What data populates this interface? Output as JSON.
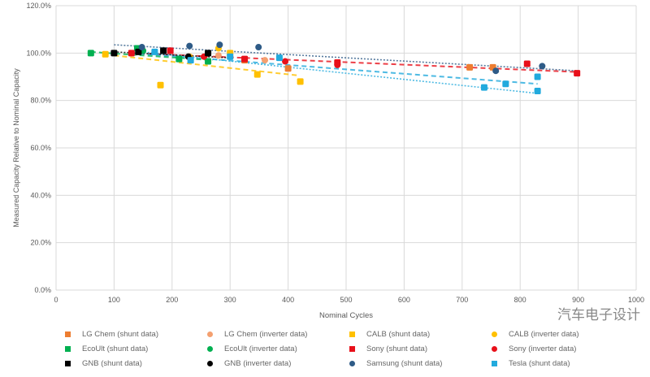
{
  "chart_data": {
    "type": "scatter",
    "title": "",
    "xlabel": "Nominal Cycles",
    "ylabel": "Measured Capacity Relative to Nominal Capacity",
    "xlim": [
      0,
      1000
    ],
    "ylim": [
      0,
      120
    ],
    "xticks": [
      "0",
      "100",
      "200",
      "300",
      "400",
      "500",
      "600",
      "700",
      "800",
      "900",
      "1000"
    ],
    "yticks": [
      "0.0%",
      "20.0%",
      "40.0%",
      "60.0%",
      "80.0%",
      "100.0%",
      "120.0%"
    ],
    "grid": true,
    "legend_position": "bottom",
    "series": [
      {
        "name": "LG Chem (shunt data)",
        "color": "#ED7D31",
        "marker": "square",
        "points": [
          [
            325,
            97
          ],
          [
            400,
            93.5
          ],
          [
            713,
            94
          ],
          [
            753,
            94
          ]
        ]
      },
      {
        "name": "LG Chem (inverter data)",
        "color": "#F4A070",
        "marker": "circle",
        "points": [
          [
            280,
            99
          ],
          [
            360,
            97
          ]
        ]
      },
      {
        "name": "CALB (shunt data)",
        "color": "#FFC000",
        "marker": "square",
        "points": [
          [
            85,
            99.5
          ],
          [
            180,
            86.5
          ],
          [
            300,
            100
          ],
          [
            347,
            91
          ],
          [
            421,
            88
          ]
        ]
      },
      {
        "name": "CALB (inverter data)",
        "color": "#FFC000",
        "marker": "circle",
        "points": [
          [
            230,
            98.5
          ],
          [
            280,
            102
          ]
        ]
      },
      {
        "name": "EcoUlt (shunt data)",
        "color": "#00B050",
        "marker": "square",
        "points": [
          [
            60,
            100
          ],
          [
            140,
            102
          ],
          [
            212,
            97.5
          ],
          [
            262,
            96.5
          ]
        ]
      },
      {
        "name": "EcoUlt (inverter data)",
        "color": "#00B050",
        "marker": "circle",
        "points": [
          [
            150,
            101
          ]
        ]
      },
      {
        "name": "Sony (shunt data)",
        "color": "#E8101A",
        "marker": "square",
        "points": [
          [
            130,
            100
          ],
          [
            197,
            101
          ],
          [
            325,
            97.5
          ],
          [
            485,
            96
          ],
          [
            812,
            95.5
          ],
          [
            898,
            91.5
          ]
        ]
      },
      {
        "name": "Sony (inverter data)",
        "color": "#E8101A",
        "marker": "circle",
        "points": [
          [
            255,
            98.5
          ],
          [
            395,
            96.5
          ],
          [
            485,
            95
          ]
        ]
      },
      {
        "name": "GNB (shunt data)",
        "color": "#000000",
        "marker": "square",
        "points": [
          [
            100,
            100
          ],
          [
            142,
            100.5
          ],
          [
            185,
            101
          ],
          [
            262,
            100
          ]
        ]
      },
      {
        "name": "GNB (inverter data)",
        "color": "#000000",
        "marker": "circle",
        "points": [
          [
            228,
            98.5
          ]
        ]
      },
      {
        "name": "Samsung (shunt data)",
        "color": "#2E5B87",
        "marker": "circle",
        "points": [
          [
            148,
            102.5
          ],
          [
            230,
            103
          ],
          [
            282,
            103.5
          ],
          [
            349,
            102.5
          ],
          [
            758,
            92.5
          ],
          [
            838,
            94.5
          ]
        ]
      },
      {
        "name": "Tesla (shunt data)",
        "color": "#22AADD",
        "marker": "square",
        "points": [
          [
            170,
            100.5
          ],
          [
            232,
            97
          ],
          [
            300,
            98.5
          ],
          [
            385,
            98
          ],
          [
            738,
            85.5
          ],
          [
            775,
            87
          ],
          [
            830,
            90
          ],
          [
            830,
            84
          ]
        ]
      }
    ],
    "trendlines": [
      {
        "series": "CALB",
        "color": "#FFC000",
        "style": "dashed",
        "from": [
          100,
          99
        ],
        "to": [
          420,
          90.5
        ]
      },
      {
        "series": "Sony",
        "color": "#E8101A",
        "style": "dashed",
        "from": [
          130,
          100
        ],
        "to": [
          900,
          92
        ]
      },
      {
        "series": "Samsung",
        "color": "#2E5B87",
        "style": "dotted",
        "from": [
          100,
          103.5
        ],
        "to": [
          900,
          92.5
        ]
      },
      {
        "series": "Tesla",
        "color": "#22AADD",
        "style": "dotted",
        "from": [
          130,
          101
        ],
        "to": [
          830,
          83
        ]
      },
      {
        "series": "Tesla",
        "color": "#22AADD",
        "style": "dashed",
        "from": [
          130,
          100
        ],
        "to": [
          830,
          87
        ]
      },
      {
        "series": "GNB",
        "color": "#000000",
        "style": "dotted",
        "from": [
          100,
          100.5
        ],
        "to": [
          300,
          98
        ]
      },
      {
        "series": "EcoUlt",
        "color": "#00B050",
        "style": "dashed",
        "from": [
          60,
          100.5
        ],
        "to": [
          270,
          97
        ]
      }
    ]
  },
  "watermark": "汽车电子设计"
}
